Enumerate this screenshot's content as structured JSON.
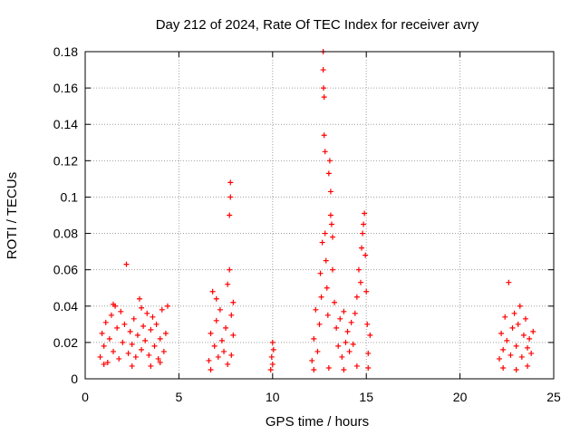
{
  "chart_data": {
    "type": "scatter",
    "title": "Day 212 of 2024, Rate Of TEC Index for receiver avry",
    "xlabel": "GPS time / hours",
    "ylabel": "ROTI / TECUs",
    "xlim": [
      0,
      25
    ],
    "ylim": [
      0,
      0.18
    ],
    "xticks": [
      0,
      5,
      10,
      15,
      20,
      25
    ],
    "yticks": [
      0,
      0.02,
      0.04,
      0.06,
      0.08,
      0.1,
      0.12,
      0.14,
      0.16,
      0.18
    ],
    "xtick_labels": [
      "0",
      "5",
      "10",
      "15",
      "20",
      "25"
    ],
    "ytick_labels": [
      "0",
      "0.02",
      "0.04",
      "0.06",
      "0.08",
      "0.1",
      "0.12",
      "0.14",
      "0.16",
      "0.18"
    ],
    "grid": true,
    "marker": "+",
    "color": "#ff0000",
    "series": [
      {
        "name": "ROTI",
        "points": [
          [
            0.8,
            0.012
          ],
          [
            0.9,
            0.025
          ],
          [
            1.0,
            0.018
          ],
          [
            1.1,
            0.031
          ],
          [
            1.2,
            0.009
          ],
          [
            1.3,
            0.022
          ],
          [
            1.4,
            0.035
          ],
          [
            1.5,
            0.015
          ],
          [
            1.6,
            0.04
          ],
          [
            1.7,
            0.028
          ],
          [
            1.8,
            0.011
          ],
          [
            1.9,
            0.037
          ],
          [
            2.0,
            0.02
          ],
          [
            2.1,
            0.03
          ],
          [
            2.2,
            0.063
          ],
          [
            2.3,
            0.014
          ],
          [
            2.4,
            0.026
          ],
          [
            2.5,
            0.019
          ],
          [
            2.6,
            0.033
          ],
          [
            2.7,
            0.012
          ],
          [
            2.8,
            0.024
          ],
          [
            2.9,
            0.044
          ],
          [
            3.0,
            0.016
          ],
          [
            3.1,
            0.029
          ],
          [
            3.2,
            0.021
          ],
          [
            3.3,
            0.036
          ],
          [
            3.4,
            0.013
          ],
          [
            3.5,
            0.027
          ],
          [
            3.6,
            0.034
          ],
          [
            3.7,
            0.018
          ],
          [
            3.8,
            0.03
          ],
          [
            3.9,
            0.011
          ],
          [
            4.0,
            0.022
          ],
          [
            4.1,
            0.038
          ],
          [
            4.2,
            0.015
          ],
          [
            4.3,
            0.025
          ],
          [
            4.4,
            0.04
          ],
          [
            1.0,
            0.008
          ],
          [
            1.5,
            0.041
          ],
          [
            2.5,
            0.007
          ],
          [
            3.0,
            0.039
          ],
          [
            3.5,
            0.007
          ],
          [
            4.0,
            0.009
          ],
          [
            6.6,
            0.01
          ],
          [
            6.7,
            0.025
          ],
          [
            6.8,
            0.048
          ],
          [
            6.9,
            0.018
          ],
          [
            7.0,
            0.032
          ],
          [
            7.1,
            0.012
          ],
          [
            7.2,
            0.038
          ],
          [
            7.3,
            0.021
          ],
          [
            7.4,
            0.015
          ],
          [
            7.5,
            0.028
          ],
          [
            7.6,
            0.052
          ],
          [
            7.7,
            0.06
          ],
          [
            7.7,
            0.09
          ],
          [
            7.75,
            0.1
          ],
          [
            7.75,
            0.108
          ],
          [
            7.8,
            0.035
          ],
          [
            7.8,
            0.013
          ],
          [
            7.9,
            0.024
          ],
          [
            6.7,
            0.005
          ],
          [
            7.0,
            0.044
          ],
          [
            7.6,
            0.008
          ],
          [
            7.9,
            0.042
          ],
          [
            9.9,
            0.005
          ],
          [
            9.95,
            0.012
          ],
          [
            10.0,
            0.02
          ],
          [
            10.0,
            0.008
          ],
          [
            10.05,
            0.016
          ],
          [
            12.1,
            0.01
          ],
          [
            12.2,
            0.022
          ],
          [
            12.3,
            0.038
          ],
          [
            12.4,
            0.015
          ],
          [
            12.5,
            0.03
          ],
          [
            12.55,
            0.058
          ],
          [
            12.6,
            0.045
          ],
          [
            12.65,
            0.075
          ],
          [
            12.7,
            0.18
          ],
          [
            12.7,
            0.17
          ],
          [
            12.72,
            0.16
          ],
          [
            12.75,
            0.155
          ],
          [
            12.75,
            0.134
          ],
          [
            12.8,
            0.125
          ],
          [
            12.8,
            0.08
          ],
          [
            12.85,
            0.065
          ],
          [
            12.9,
            0.05
          ],
          [
            12.95,
            0.035
          ],
          [
            13.0,
            0.113
          ],
          [
            13.05,
            0.12
          ],
          [
            13.1,
            0.103
          ],
          [
            13.1,
            0.09
          ],
          [
            13.15,
            0.085
          ],
          [
            13.2,
            0.078
          ],
          [
            13.2,
            0.06
          ],
          [
            13.3,
            0.042
          ],
          [
            13.4,
            0.028
          ],
          [
            13.5,
            0.018
          ],
          [
            13.6,
            0.033
          ],
          [
            13.7,
            0.012
          ],
          [
            13.8,
            0.037
          ],
          [
            13.9,
            0.02
          ],
          [
            14.0,
            0.026
          ],
          [
            14.1,
            0.015
          ],
          [
            14.2,
            0.031
          ],
          [
            14.3,
            0.019
          ],
          [
            14.4,
            0.036
          ],
          [
            14.5,
            0.045
          ],
          [
            14.6,
            0.06
          ],
          [
            14.7,
            0.053
          ],
          [
            14.75,
            0.072
          ],
          [
            14.8,
            0.08
          ],
          [
            14.85,
            0.085
          ],
          [
            14.9,
            0.091
          ],
          [
            14.95,
            0.068
          ],
          [
            15.0,
            0.048
          ],
          [
            15.05,
            0.03
          ],
          [
            15.1,
            0.014
          ],
          [
            15.2,
            0.024
          ],
          [
            12.2,
            0.005
          ],
          [
            13.0,
            0.006
          ],
          [
            13.8,
            0.005
          ],
          [
            14.5,
            0.007
          ],
          [
            15.1,
            0.006
          ],
          [
            22.1,
            0.011
          ],
          [
            22.2,
            0.025
          ],
          [
            22.3,
            0.016
          ],
          [
            22.4,
            0.034
          ],
          [
            22.5,
            0.021
          ],
          [
            22.6,
            0.053
          ],
          [
            22.7,
            0.013
          ],
          [
            22.8,
            0.028
          ],
          [
            22.9,
            0.036
          ],
          [
            23.0,
            0.018
          ],
          [
            23.1,
            0.03
          ],
          [
            23.2,
            0.04
          ],
          [
            23.3,
            0.012
          ],
          [
            23.4,
            0.024
          ],
          [
            23.5,
            0.033
          ],
          [
            23.6,
            0.017
          ],
          [
            23.7,
            0.022
          ],
          [
            23.8,
            0.014
          ],
          [
            23.9,
            0.026
          ],
          [
            22.3,
            0.006
          ],
          [
            23.0,
            0.005
          ],
          [
            23.6,
            0.007
          ]
        ]
      }
    ]
  }
}
